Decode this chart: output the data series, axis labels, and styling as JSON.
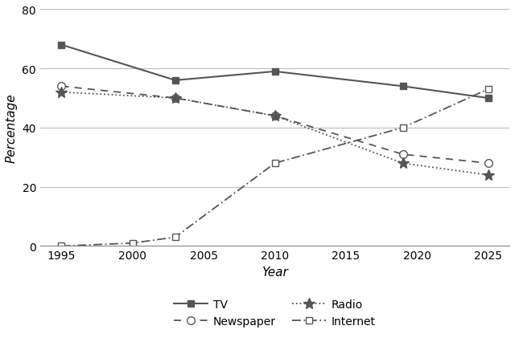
{
  "years": [
    1995,
    2000,
    2003,
    2010,
    2019,
    2025
  ],
  "TV": [
    68,
    null,
    56,
    59,
    54,
    50
  ],
  "Newspaper": [
    54,
    null,
    50,
    44,
    31,
    28
  ],
  "Radio": [
    52,
    null,
    50,
    44,
    28,
    24
  ],
  "Internet": [
    0,
    1,
    3,
    28,
    40,
    53
  ],
  "xlabel": "Year",
  "ylabel": "Percentage",
  "ylim": [
    0,
    80
  ],
  "yticks": [
    0,
    20,
    40,
    60,
    80
  ],
  "xticks": [
    1995,
    2000,
    2005,
    2010,
    2015,
    2020,
    2025
  ],
  "line_color": "#555555",
  "background_color": "#ffffff",
  "legend_order": [
    "TV",
    "Newspaper",
    "Radio",
    "Internet"
  ]
}
